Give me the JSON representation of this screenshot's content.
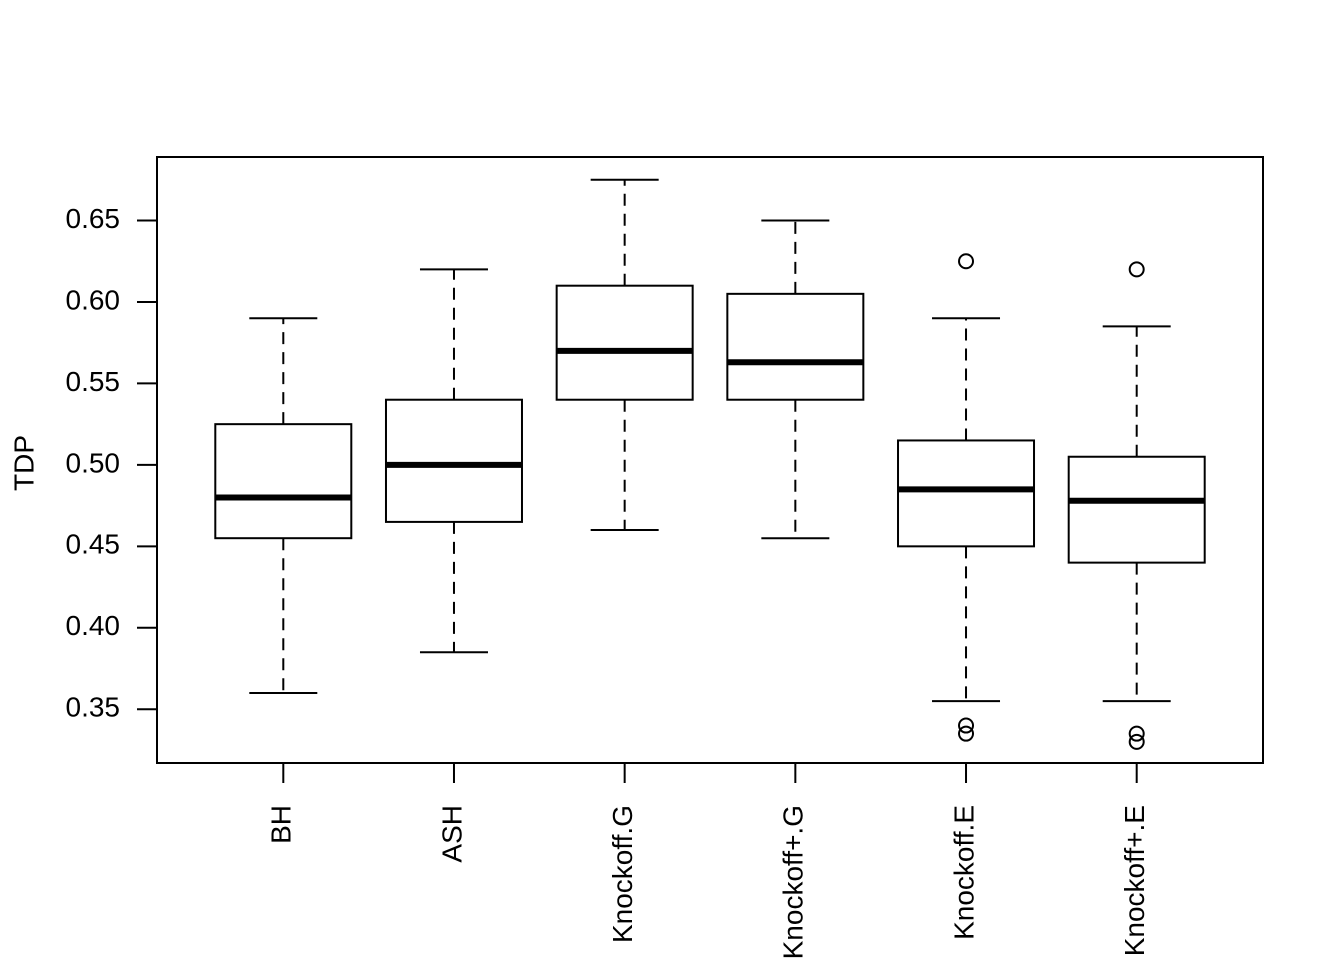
{
  "chart_data": {
    "type": "boxplot",
    "ylabel": "TDP",
    "categories": [
      "BH",
      "ASH",
      "Knockoff.G",
      "Knockoff+.G",
      "Knockoff.E",
      "Knockoff+.E"
    ],
    "boxes": [
      {
        "whislo": 0.36,
        "q1": 0.455,
        "median": 0.48,
        "q3": 0.525,
        "whishi": 0.59,
        "outliers": []
      },
      {
        "whislo": 0.385,
        "q1": 0.465,
        "median": 0.5,
        "q3": 0.54,
        "whishi": 0.62,
        "outliers": []
      },
      {
        "whislo": 0.46,
        "q1": 0.54,
        "median": 0.57,
        "q3": 0.61,
        "whishi": 0.675,
        "outliers": []
      },
      {
        "whislo": 0.455,
        "q1": 0.54,
        "median": 0.563,
        "q3": 0.605,
        "whishi": 0.65,
        "outliers": []
      },
      {
        "whislo": 0.355,
        "q1": 0.45,
        "median": 0.485,
        "q3": 0.515,
        "whishi": 0.59,
        "outliers": [
          0.625,
          0.34,
          0.335
        ]
      },
      {
        "whislo": 0.355,
        "q1": 0.44,
        "median": 0.478,
        "q3": 0.505,
        "whishi": 0.585,
        "outliers": [
          0.62,
          0.335,
          0.33
        ]
      }
    ],
    "color": "#000000",
    "ylim": [
      0.317,
      0.689
    ],
    "yticks": [
      0.35,
      {
        "value": 0.4,
        "label": "0.40"
      },
      0.45,
      {
        "value": 0.5,
        "label": "0.50"
      },
      0.55,
      {
        "value": 0.6,
        "label": "0.60"
      },
      0.65
    ]
  }
}
